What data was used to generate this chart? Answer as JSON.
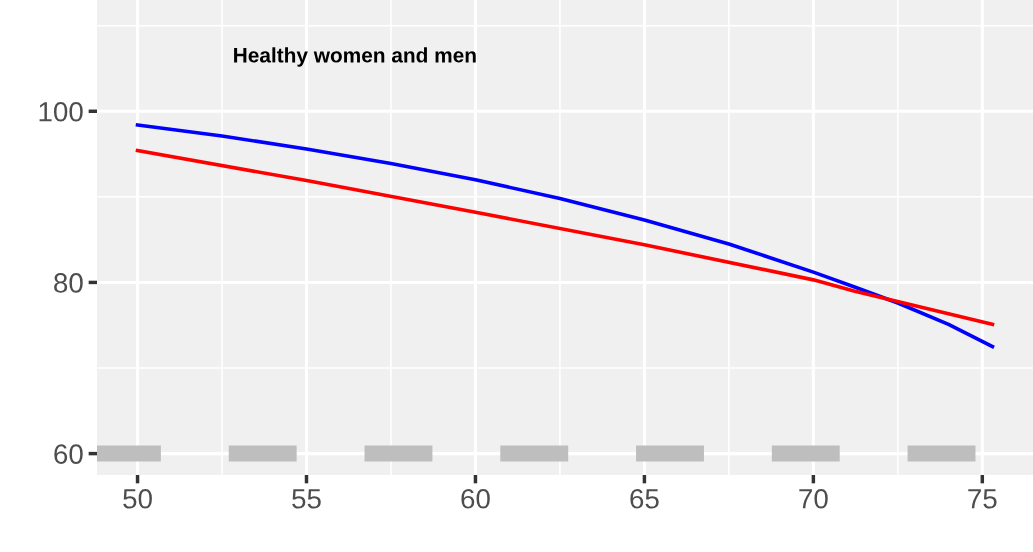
{
  "chart_data": {
    "type": "line",
    "annotations": [
      "Healthy women and men"
    ],
    "series": [
      {
        "color": "#0000ff",
        "x": [
          50,
          52.5,
          55,
          57.5,
          60,
          62.5,
          65,
          67.5,
          70,
          71.2,
          72.5,
          74,
          75.3
        ],
        "values": [
          98.4,
          97.1,
          95.6,
          93.9,
          92.0,
          89.8,
          87.3,
          84.5,
          81.2,
          79.5,
          77.6,
          75.1,
          72.5
        ]
      },
      {
        "color": "#ff0000",
        "x": [
          50,
          55,
          60,
          65,
          70,
          71.2,
          75.3
        ],
        "values": [
          95.4,
          91.9,
          88.2,
          84.4,
          80.3,
          79.0,
          75.1
        ]
      }
    ],
    "ref_lines": [
      {
        "axis": "y",
        "value": 60,
        "color": "#bebebe",
        "line_style": "dashed"
      }
    ],
    "xlim": [
      48.8,
      76.5
    ],
    "ylim": [
      57.5,
      113
    ],
    "xticks": [
      50,
      55,
      60,
      65,
      70,
      75
    ],
    "yticks": [
      60,
      80,
      100
    ],
    "grid": true,
    "line_style": "solid",
    "marker": "none",
    "legend": false
  }
}
